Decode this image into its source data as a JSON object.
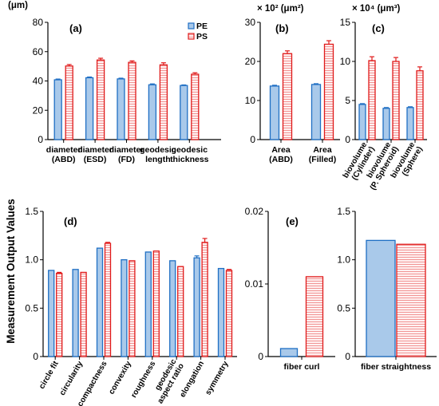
{
  "figure": {
    "ylabel": "Measurement Output Values",
    "legend": [
      {
        "name": "PE",
        "color": "#1f6fc4",
        "fill": "#a9c9ea"
      },
      {
        "name": "PS",
        "color": "#e01a1a",
        "fill": "#fde2e2"
      }
    ]
  },
  "chart_data": [
    {
      "panel": "(a)",
      "type": "bar",
      "unit_label": "(μm)",
      "unit_color": "#000000",
      "ylim": [
        0,
        80
      ],
      "yticks": [
        "0",
        "20",
        "40",
        "60",
        "80"
      ],
      "categories": [
        "diameter\n(ABD)",
        "diameter\n(ESD)",
        "diameter\n(FD)",
        "geodesic\nlength",
        "geodesic\nthickness"
      ],
      "series": [
        {
          "name": "PE",
          "values": [
            40.8,
            42.2,
            41.4,
            37.4,
            36.9
          ],
          "errors": [
            0.5,
            0.5,
            0.5,
            0.6,
            0.4
          ]
        },
        {
          "name": "PS",
          "values": [
            50.2,
            54.3,
            52.7,
            51.0,
            44.6
          ],
          "errors": [
            1.0,
            1.2,
            1.0,
            1.4,
            1.0
          ]
        }
      ],
      "legend": "top-right"
    },
    {
      "panel": "(b)",
      "type": "bar",
      "unit_label": "× 10² (μm²)",
      "unit_color": "#1a1ab8",
      "ylim": [
        0,
        30
      ],
      "yticks": [
        "0",
        "10",
        "20",
        "30"
      ],
      "categories": [
        "Area\n(ABD)",
        "Area\n(Filled)"
      ],
      "series": [
        {
          "name": "PE",
          "values": [
            13.7,
            14.1
          ],
          "errors": [
            0.2,
            0.2
          ]
        },
        {
          "name": "PS",
          "values": [
            22.0,
            24.4
          ],
          "errors": [
            0.7,
            0.9
          ]
        }
      ]
    },
    {
      "panel": "(c)",
      "type": "bar",
      "unit_label": "× 10⁴ (μm³)",
      "unit_color": "#e01a1a",
      "ylim": [
        0,
        15
      ],
      "yticks": [
        "0",
        "5",
        "10",
        "15"
      ],
      "categories": [
        "biovolume\n(Cylinder)",
        "biovolume\n(P. Spheroid)",
        "biovolume\n(Sphere)"
      ],
      "series": [
        {
          "name": "PE",
          "values": [
            4.5,
            4.0,
            4.1
          ],
          "errors": [
            0.1,
            0.1,
            0.1
          ]
        },
        {
          "name": "PS",
          "values": [
            10.1,
            10.0,
            8.8
          ],
          "errors": [
            0.5,
            0.5,
            0.5
          ]
        }
      ]
    },
    {
      "panel": "(d)",
      "type": "bar",
      "ylim": [
        0,
        1.5
      ],
      "yticks": [
        "0",
        "0.5",
        "1.0",
        "1.5"
      ],
      "categories": [
        "circle fit",
        "circularity",
        "compactness",
        "convexity",
        "roughness",
        "geodesic\naspect ratio",
        "elongation",
        "symmetry"
      ],
      "series": [
        {
          "name": "PE",
          "values": [
            0.89,
            0.9,
            1.12,
            1.0,
            1.08,
            0.99,
            1.02,
            0.91
          ],
          "errors": [
            0.0,
            0.0,
            0.0,
            0.0,
            0.0,
            0.0,
            0.02,
            0.0
          ]
        },
        {
          "name": "PS",
          "values": [
            0.86,
            0.87,
            1.17,
            0.99,
            1.09,
            0.93,
            1.18,
            0.89
          ],
          "errors": [
            0.01,
            0.0,
            0.01,
            0.0,
            0.0,
            0.0,
            0.04,
            0.01
          ]
        }
      ]
    },
    {
      "panel": "(e)",
      "type": "bar",
      "ylim": [
        0,
        0.02
      ],
      "yticks": [
        "0",
        "0.01",
        "0.02"
      ],
      "categories": [
        "fiber curl"
      ],
      "series": [
        {
          "name": "PE",
          "values": [
            0.0011
          ]
        },
        {
          "name": "PS",
          "values": [
            0.011
          ]
        }
      ]
    },
    {
      "panel": "",
      "type": "bar",
      "ylim": [
        0,
        1.5
      ],
      "yticks": [
        "0",
        "0.5",
        "1.0",
        "1.5"
      ],
      "categories": [
        "fiber straightness"
      ],
      "series": [
        {
          "name": "PE",
          "values": [
            1.2
          ]
        },
        {
          "name": "PS",
          "values": [
            1.16
          ]
        }
      ]
    }
  ]
}
